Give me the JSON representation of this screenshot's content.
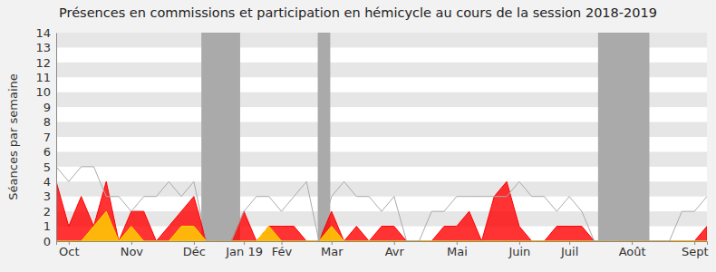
{
  "chart_data": {
    "type": "area",
    "title": "Présences en commissions et participation en hémicycle au cours de la session 2018-2019",
    "y_label": "Séances par semaine",
    "categories": [
      null,
      "Oct",
      null,
      null,
      null,
      null,
      "Nov",
      null,
      null,
      null,
      null,
      "Déc",
      null,
      null,
      null,
      "Jan 19",
      null,
      null,
      "Fév",
      null,
      null,
      null,
      "Mar",
      null,
      null,
      null,
      null,
      "Avr",
      null,
      null,
      null,
      null,
      "Mai",
      null,
      null,
      null,
      null,
      "Juin",
      null,
      null,
      null,
      "Juil",
      null,
      null,
      null,
      null,
      "Août",
      null,
      null,
      null,
      null,
      "Sept",
      null
    ],
    "series": [
      {
        "type": "area",
        "color": "#ff0000",
        "values": [
          4,
          1,
          3,
          1,
          4,
          0,
          2,
          2,
          0,
          1,
          2,
          3,
          0,
          0,
          0,
          2,
          0,
          1,
          1,
          1,
          0,
          0,
          2,
          0,
          1,
          0,
          1,
          1,
          0,
          0,
          0,
          1,
          1,
          2,
          0,
          3,
          4,
          1,
          0,
          0,
          1,
          1,
          1,
          0,
          0,
          0,
          0,
          0,
          0,
          0,
          0,
          0,
          1
        ]
      },
      {
        "type": "area",
        "color": "#ffd700",
        "values": [
          0,
          0,
          0,
          1,
          2,
          0,
          1,
          0,
          0,
          0,
          1,
          1,
          0,
          0,
          0,
          0,
          0,
          1,
          0,
          0,
          0,
          0,
          1,
          0,
          0,
          0,
          0,
          0,
          0,
          0,
          0,
          0,
          0,
          0,
          0,
          0,
          0,
          0,
          0,
          0,
          0,
          0,
          0,
          0,
          0,
          0,
          0,
          0,
          0,
          0,
          0,
          0,
          0
        ]
      },
      {
        "type": "line",
        "color": "#aaaaaa",
        "values": [
          5,
          4,
          5,
          5,
          3,
          3,
          2,
          3,
          3,
          4,
          3,
          4,
          0,
          0,
          0,
          2,
          3,
          3,
          2,
          3,
          4,
          0,
          3,
          4,
          3,
          3,
          2,
          3,
          0,
          0,
          2,
          2,
          3,
          3,
          3,
          3,
          3,
          4,
          3,
          3,
          2,
          3,
          2,
          0,
          0,
          0,
          0,
          0,
          0,
          0,
          2,
          2,
          3
        ]
      }
    ],
    "shaded_ranges": [
      [
        11.6,
        14.7
      ],
      [
        20.9,
        21.9
      ],
      [
        43.3,
        47.4
      ]
    ],
    "ylim": [
      0,
      14
    ],
    "yticks": [
      0,
      1,
      2,
      3,
      4,
      5,
      6,
      7,
      8,
      9,
      10,
      11,
      12,
      13,
      14
    ],
    "grid": true
  }
}
